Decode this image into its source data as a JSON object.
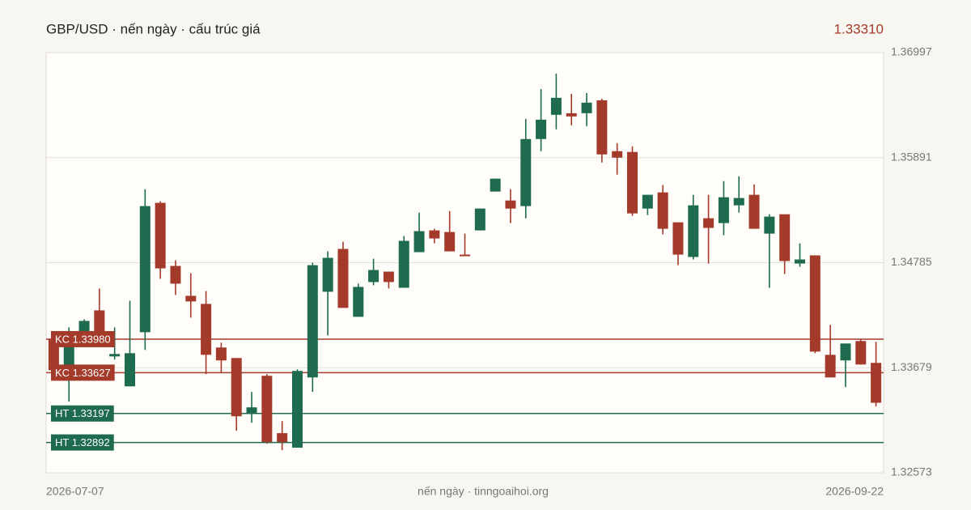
{
  "chart_data": {
    "type": "candlestick",
    "title": "GBP/USD · nến ngày · cấu trúc giá",
    "last_price": "1.33310",
    "footer": "nến ngày · tinngoaihoi.org",
    "up_color": "#1e6b4f",
    "down_color": "#a33a2a",
    "categories": [
      "2026-07-07",
      null,
      null,
      null,
      null,
      null,
      null,
      null,
      null,
      null,
      null,
      null,
      null,
      null,
      null,
      null,
      null,
      null,
      null,
      null,
      null,
      null,
      null,
      null,
      null,
      null,
      null,
      null,
      null,
      null,
      null,
      null,
      null,
      null,
      null,
      null,
      null,
      null,
      null,
      null,
      null,
      null,
      null,
      null,
      null,
      null,
      null,
      null,
      null,
      null,
      null,
      null,
      null,
      null,
      "2026-09-22"
    ],
    "open": [
      1.33985,
      1.33679,
      1.33951,
      1.34283,
      1.33798,
      1.33483,
      1.34053,
      1.35415,
      1.34751,
      1.34436,
      1.34351,
      1.33892,
      1.33781,
      1.33202,
      1.33594,
      1.3299,
      1.32837,
      1.33577,
      1.34479,
      1.3493,
      1.34215,
      1.34581,
      1.34691,
      1.34521,
      1.34896,
      1.35125,
      1.35108,
      1.3487,
      1.35125,
      1.35534,
      1.3544,
      1.35381,
      1.36087,
      1.36342,
      1.36359,
      1.36359,
      1.36495,
      1.35959,
      1.35951,
      1.35355,
      1.35525,
      1.3521,
      1.34845,
      1.35253,
      1.35202,
      1.35389,
      1.355,
      1.35091,
      1.35295,
      1.34776,
      1.34862,
      1.33815,
      1.33756,
      1.3396,
      1.3373
    ],
    "high": [
      1.34062,
      1.34104,
      1.34189,
      1.34513,
      1.34104,
      1.34385,
      1.35559,
      1.35432,
      1.3481,
      1.34674,
      1.34487,
      1.33943,
      1.33781,
      1.33424,
      1.33611,
      1.33117,
      1.33662,
      1.34785,
      1.34904,
      1.35006,
      1.34564,
      1.34827,
      1.34691,
      1.35066,
      1.35312,
      1.35142,
      1.35329,
      1.35091,
      1.35355,
      1.3567,
      1.35559,
      1.36299,
      1.36614,
      1.36776,
      1.36563,
      1.36572,
      1.36512,
      1.36044,
      1.3601,
      1.355,
      1.35602,
      1.3521,
      1.355,
      1.355,
      1.35644,
      1.35695,
      1.3561,
      1.35295,
      1.35295,
      1.34989,
      1.34862,
      1.3413,
      1.33934,
      1.33977,
      1.33951
    ],
    "low": [
      1.33619,
      1.33322,
      1.33934,
      1.33985,
      1.33764,
      1.33483,
      1.33866,
      1.34615,
      1.34445,
      1.34206,
      1.33611,
      1.33628,
      1.33015,
      1.331,
      1.32879,
      1.32811,
      1.32837,
      1.33424,
      1.34019,
      1.34309,
      1.34215,
      1.34547,
      1.34513,
      1.34521,
      1.34896,
      1.34989,
      1.34904,
      1.34853,
      1.35125,
      1.35534,
      1.35202,
      1.35253,
      1.35959,
      1.36189,
      1.36231,
      1.36223,
      1.3584,
      1.35712,
      1.35278,
      1.35287,
      1.35083,
      1.34759,
      1.34819,
      1.34776,
      1.35074,
      1.35312,
      1.35142,
      1.34521,
      1.34666,
      1.34742,
      1.33832,
      1.33577,
      1.33475,
      1.33713,
      1.33271
    ],
    "close": [
      1.33653,
      1.34002,
      1.34172,
      1.34002,
      1.33824,
      1.33832,
      1.35381,
      1.34725,
      1.34564,
      1.34377,
      1.33815,
      1.33756,
      1.33168,
      1.33262,
      1.32896,
      1.32896,
      1.33645,
      1.34759,
      1.34836,
      1.34309,
      1.3453,
      1.34708,
      1.34581,
      1.35015,
      1.35117,
      1.3504,
      1.34904,
      1.34853,
      1.35355,
      1.3567,
      1.35355,
      1.36087,
      1.36291,
      1.36521,
      1.36325,
      1.3647,
      1.35925,
      1.35891,
      1.35304,
      1.355,
      1.35142,
      1.3487,
      1.35389,
      1.35151,
      1.35474,
      1.35466,
      1.35142,
      1.3527,
      1.34802,
      1.34819,
      1.33849,
      1.33577,
      1.33934,
      1.33713,
      1.3331
    ],
    "levels": [
      {
        "label": "KC 1.33980",
        "value": 1.3398,
        "color": "#a33a2a"
      },
      {
        "label": "KC 1.33627",
        "value": 1.33627,
        "color": "#a33a2a"
      },
      {
        "label": "HT 1.33197",
        "value": 1.33197,
        "color": "#1e6b4f"
      },
      {
        "label": "HT 1.32892",
        "value": 1.32892,
        "color": "#1e6b4f"
      }
    ],
    "ylim": [
      1.32573,
      1.36997
    ],
    "yticks": [
      1.32573,
      1.33679,
      1.34785,
      1.35891,
      1.36997
    ],
    "grid": true
  }
}
